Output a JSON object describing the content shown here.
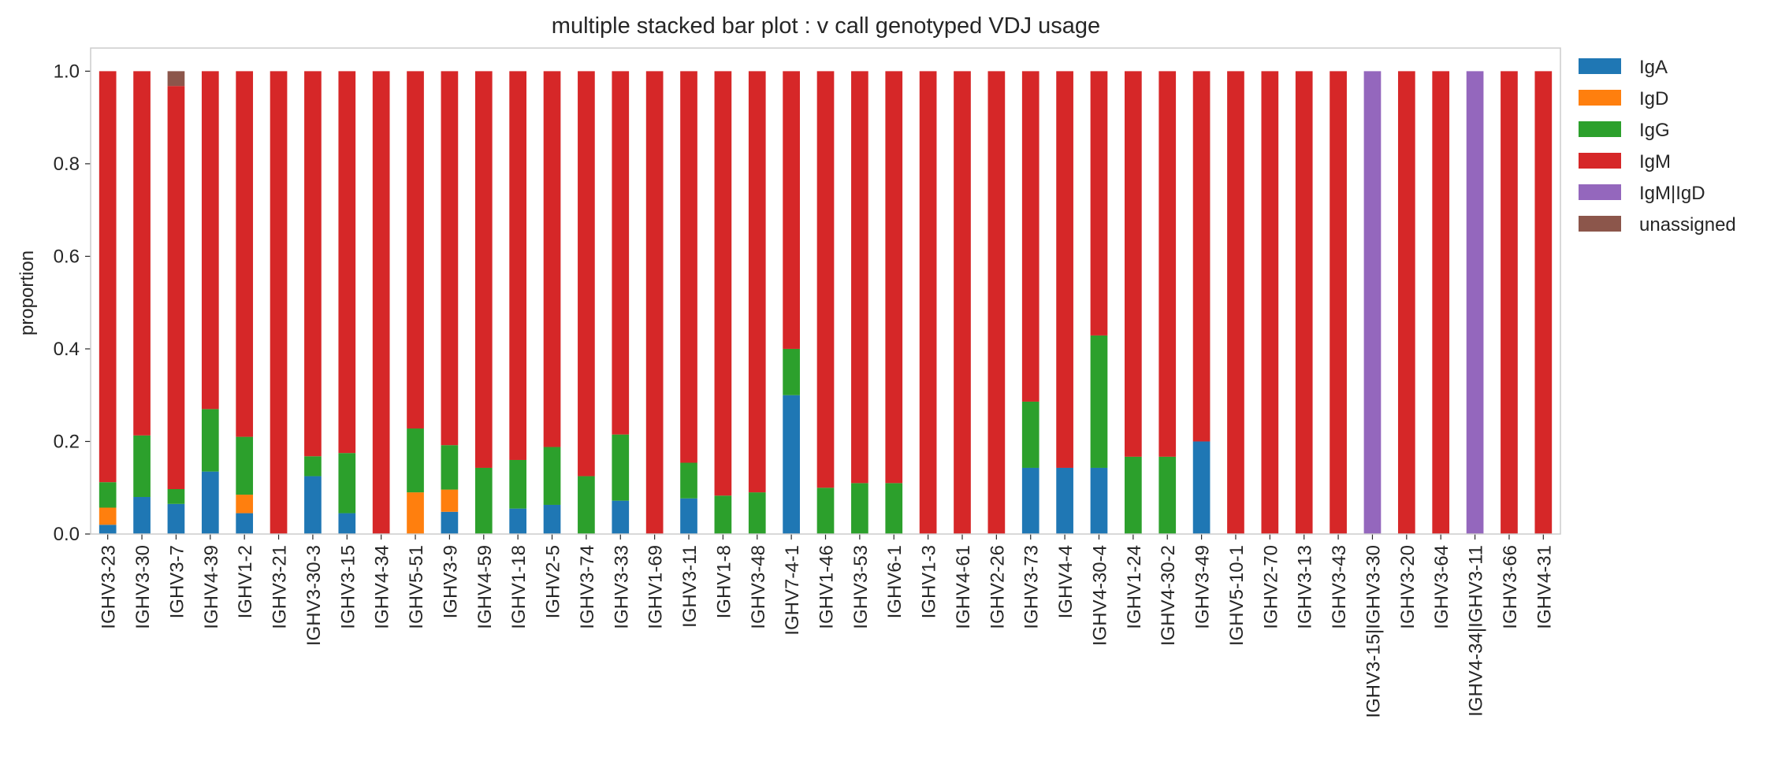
{
  "chart_data": {
    "type": "bar",
    "stacked": true,
    "title": "multiple stacked bar plot : v call genotyped VDJ usage",
    "xlabel": "",
    "ylabel": "proportion",
    "ylim": [
      0,
      1.05
    ],
    "yticks": [
      "0.0",
      "0.2",
      "0.4",
      "0.6",
      "0.8",
      "1.0"
    ],
    "grid": false,
    "legend_position": "right",
    "categories": [
      "IGHV3-23",
      "IGHV3-30",
      "IGHV3-7",
      "IGHV4-39",
      "IGHV1-2",
      "IGHV3-21",
      "IGHV3-30-3",
      "IGHV3-15",
      "IGHV4-34",
      "IGHV5-51",
      "IGHV3-9",
      "IGHV4-59",
      "IGHV1-18",
      "IGHV2-5",
      "IGHV3-74",
      "IGHV3-33",
      "IGHV1-69",
      "IGHV3-11",
      "IGHV1-8",
      "IGHV3-48",
      "IGHV7-4-1",
      "IGHV1-46",
      "IGHV3-53",
      "IGHV6-1",
      "IGHV1-3",
      "IGHV4-61",
      "IGHV2-26",
      "IGHV3-73",
      "IGHV4-4",
      "IGHV4-30-4",
      "IGHV1-24",
      "IGHV4-30-2",
      "IGHV3-49",
      "IGHV5-10-1",
      "IGHV2-70",
      "IGHV3-13",
      "IGHV3-43",
      "IGHV3-15|IGHV3-30",
      "IGHV3-20",
      "IGHV3-64",
      "IGHV4-34|IGHV3-11",
      "IGHV3-66",
      "IGHV4-31"
    ],
    "series": [
      {
        "name": "IgA",
        "color": "#1f77b4",
        "values": [
          0.02,
          0.08,
          0.065,
          0.135,
          0.045,
          0,
          0.125,
          0.045,
          0,
          0,
          0.048,
          0,
          0.055,
          0.063,
          0,
          0.072,
          0,
          0.077,
          0,
          0,
          0.3,
          0,
          0,
          0,
          0,
          0,
          0,
          0.143,
          0.143,
          0.143,
          0,
          0,
          0.2,
          0,
          0,
          0,
          0,
          0,
          0,
          0,
          0,
          0,
          0
        ]
      },
      {
        "name": "IgD",
        "color": "#ff7f0e",
        "values": [
          0.037,
          0,
          0,
          0,
          0.04,
          0,
          0,
          0,
          0,
          0.09,
          0.048,
          0,
          0,
          0,
          0,
          0,
          0,
          0,
          0,
          0,
          0,
          0,
          0,
          0,
          0,
          0,
          0,
          0,
          0,
          0,
          0,
          0,
          0,
          0,
          0,
          0,
          0,
          0,
          0,
          0,
          0,
          0,
          0
        ]
      },
      {
        "name": "IgG",
        "color": "#2ca02c",
        "values": [
          0.055,
          0.133,
          0.032,
          0.135,
          0.125,
          0,
          0.043,
          0.13,
          0,
          0.138,
          0.096,
          0.143,
          0.105,
          0.125,
          0.125,
          0.143,
          0,
          0.077,
          0.083,
          0.09,
          0.1,
          0.1,
          0.11,
          0.11,
          0,
          0,
          0,
          0.143,
          0,
          0.286,
          0.167,
          0.167,
          0,
          0,
          0,
          0,
          0,
          0,
          0,
          0,
          0,
          0,
          0
        ]
      },
      {
        "name": "IgM",
        "color": "#d62728",
        "values": [
          0.888,
          0.787,
          0.871,
          0.73,
          0.79,
          1,
          0.832,
          0.825,
          1,
          0.772,
          0.808,
          0.857,
          0.84,
          0.812,
          0.875,
          0.785,
          1,
          0.846,
          0.917,
          0.91,
          0.6,
          0.9,
          0.89,
          0.89,
          1,
          1,
          1,
          0.714,
          0.857,
          0.571,
          0.833,
          0.833,
          0.8,
          1,
          1,
          1,
          1,
          0,
          1,
          1,
          0,
          1,
          1
        ]
      },
      {
        "name": "IgM|IgD",
        "color": "#9467bd",
        "values": [
          0,
          0,
          0,
          0,
          0,
          0,
          0,
          0,
          0,
          0,
          0,
          0,
          0,
          0,
          0,
          0,
          0,
          0,
          0,
          0,
          0,
          0,
          0,
          0,
          0,
          0,
          0,
          0,
          0,
          0,
          0,
          0,
          0,
          0,
          0,
          0,
          0,
          1,
          0,
          0,
          1,
          0,
          0
        ]
      },
      {
        "name": "unassigned",
        "color": "#8c564b",
        "values": [
          0,
          0,
          0.032,
          0,
          0,
          0,
          0,
          0,
          0,
          0,
          0,
          0,
          0,
          0,
          0,
          0,
          0,
          0,
          0,
          0,
          0,
          0,
          0,
          0,
          0,
          0,
          0,
          0,
          0,
          0,
          0,
          0,
          0,
          0,
          0,
          0,
          0,
          0,
          0,
          0,
          0,
          0,
          0
        ]
      }
    ]
  }
}
